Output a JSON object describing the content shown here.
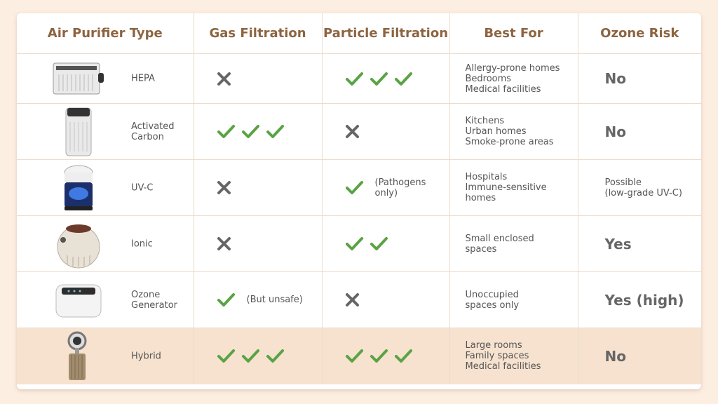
{
  "headers": [
    "Air Purifier Type",
    "Gas Filtration",
    "Particle Filtration",
    "Best For",
    "Ozone Risk"
  ],
  "colors": {
    "check": "#5aa345",
    "cross": "#666666",
    "header_text": "#8d6440",
    "highlight_row": "#f6e2cf"
  },
  "rows": [
    {
      "type": "HEPA",
      "image": "hepa-purifier-image",
      "gas": {
        "mark": "cross",
        "count": 1,
        "note": ""
      },
      "particle": {
        "mark": "check",
        "count": 3,
        "note": ""
      },
      "best_for": [
        "Allergy-prone homes",
        "Bedrooms",
        "Medical facilities"
      ],
      "ozone": "No"
    },
    {
      "type": "Activated Carbon",
      "image": "carbon-purifier-image",
      "gas": {
        "mark": "check",
        "count": 3,
        "note": ""
      },
      "particle": {
        "mark": "cross",
        "count": 1,
        "note": ""
      },
      "best_for": [
        "Kitchens",
        "Urban homes",
        "Smoke-prone areas"
      ],
      "ozone": "No"
    },
    {
      "type": "UV-C",
      "image": "uvc-purifier-image",
      "gas": {
        "mark": "cross",
        "count": 1,
        "note": ""
      },
      "particle": {
        "mark": "check",
        "count": 1,
        "note": "(Pathogens only)"
      },
      "best_for": [
        "Hospitals",
        "Immune-sensitive",
        "homes"
      ],
      "ozone": "Possible (low-grade UV-C)"
    },
    {
      "type": "Ionic",
      "image": "ionic-purifier-image",
      "gas": {
        "mark": "cross",
        "count": 1,
        "note": ""
      },
      "particle": {
        "mark": "check",
        "count": 2,
        "note": ""
      },
      "best_for": [
        "Small enclosed",
        "spaces"
      ],
      "ozone": "Yes"
    },
    {
      "type": "Ozone Generator",
      "image": "ozone-generator-image",
      "gas": {
        "mark": "check",
        "count": 1,
        "note": "(But unsafe)"
      },
      "particle": {
        "mark": "cross",
        "count": 1,
        "note": ""
      },
      "best_for": [
        "Unoccupied",
        "spaces only"
      ],
      "ozone": "Yes (high)"
    },
    {
      "type": "Hybrid",
      "image": "hybrid-purifier-image",
      "gas": {
        "mark": "check",
        "count": 3,
        "note": ""
      },
      "particle": {
        "mark": "check",
        "count": 3,
        "note": ""
      },
      "best_for": [
        "Large rooms",
        "Family spaces",
        "Medical facilities"
      ],
      "ozone": "No"
    }
  ]
}
